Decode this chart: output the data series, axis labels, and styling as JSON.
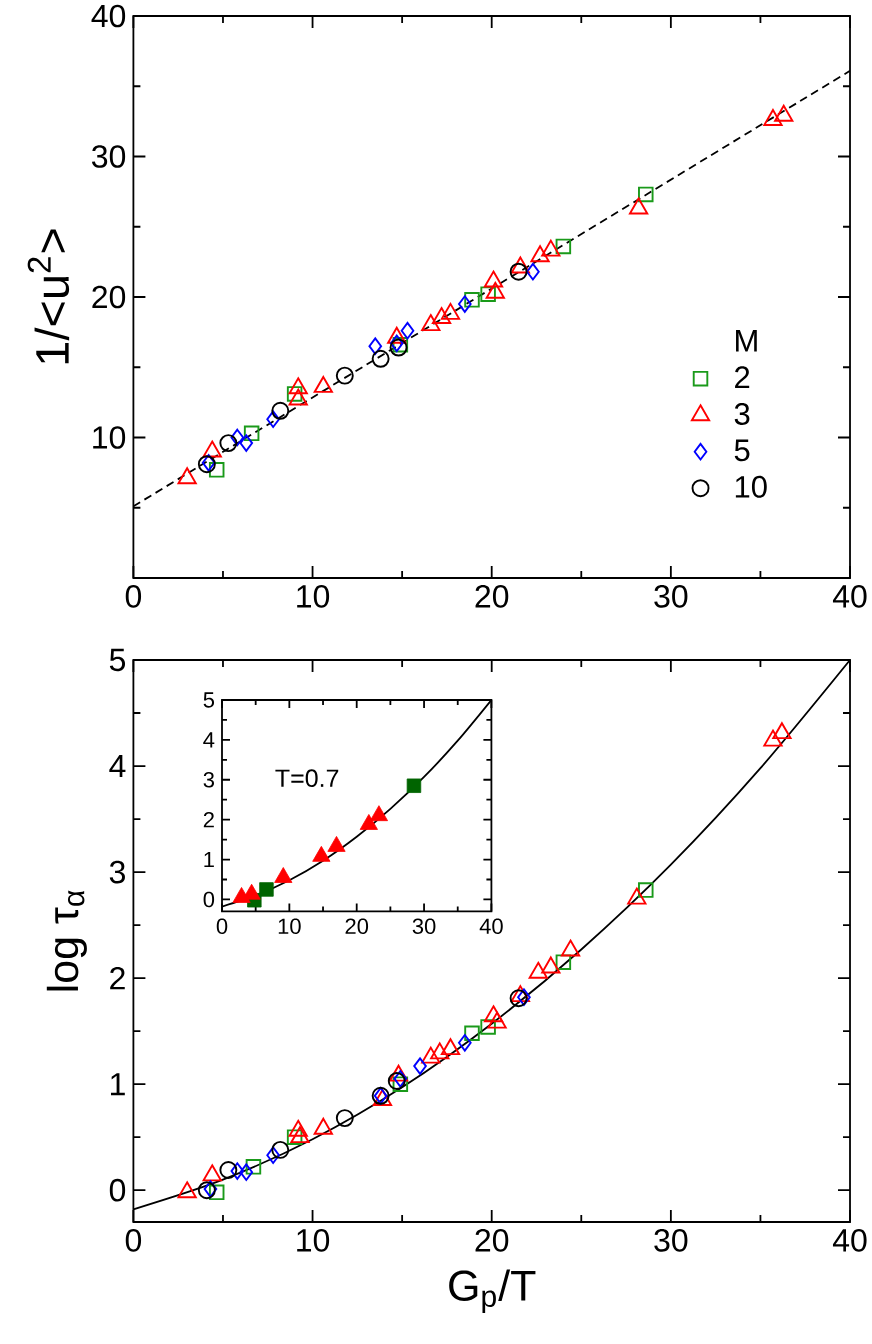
{
  "chart_data": [
    {
      "type": "scatter",
      "ylabel": "1/<u$^{2}$>",
      "legend_title": "M",
      "legend": "bottom right",
      "xlim": [
        0,
        40
      ],
      "ylim": [
        0,
        40
      ],
      "xticks": [
        0,
        {
          "value": 5,
          "label": null
        },
        10,
        {
          "value": 15,
          "label": null
        },
        20,
        {
          "value": 25,
          "label": null
        },
        30,
        {
          "value": 35,
          "label": null
        },
        40
      ],
      "yticks": [
        {
          "value": 5,
          "label": null
        },
        10,
        {
          "value": 15,
          "label": null
        },
        20,
        {
          "value": 25,
          "label": null
        },
        30,
        {
          "value": 35,
          "label": null
        },
        40
      ],
      "series": [
        {
          "type": "line",
          "color": "#000000",
          "line_style": "dashed",
          "x": [
            0,
            40
          ],
          "values": [
            5.1,
            36.1
          ]
        },
        {
          "name": "2",
          "color": "#1a9a1a",
          "marker": "square",
          "x": [
            4.65,
            6.6,
            9.0,
            14.9,
            18.9,
            19.8,
            24.0,
            28.6
          ],
          "values": [
            7.7,
            10.3,
            13.1,
            16.6,
            19.8,
            20.2,
            23.6,
            27.3
          ]
        },
        {
          "name": "3",
          "color": "#ff0000",
          "marker": "triangle",
          "x": [
            3.0,
            4.4,
            9.2,
            9.2,
            10.6,
            14.7,
            16.6,
            17.2,
            17.7,
            20.1,
            20.2,
            21.6,
            22.7,
            23.3,
            28.2,
            35.7,
            36.3
          ],
          "values": [
            7.1,
            9.0,
            13.5,
            12.7,
            13.6,
            17.1,
            18.0,
            18.5,
            18.8,
            21.1,
            20.3,
            22.1,
            22.9,
            23.3,
            26.3,
            32.6,
            32.9
          ]
        },
        {
          "name": "5",
          "color": "#0000ff",
          "marker": "diamond",
          "x": [
            4.2,
            5.8,
            6.3,
            7.8,
            13.5,
            14.7,
            15.3,
            18.5,
            22.3
          ],
          "values": [
            8.2,
            10.0,
            9.6,
            11.3,
            16.5,
            16.7,
            17.6,
            19.5,
            21.8
          ]
        },
        {
          "name": "10",
          "color": "#000000",
          "marker": "circle",
          "x": [
            4.1,
            5.3,
            8.2,
            11.8,
            13.8,
            14.8,
            21.5
          ],
          "values": [
            8.1,
            9.6,
            11.9,
            14.4,
            15.6,
            16.4,
            21.8
          ]
        }
      ]
    },
    {
      "type": "scatter",
      "xlabel": "G$_{p}$/T",
      "ylabel": "log τ$_{α}$",
      "xlim": [
        0,
        40
      ],
      "ylim": [
        -0.3,
        5
      ],
      "xticks": [
        0,
        {
          "value": 5,
          "label": null
        },
        10,
        {
          "value": 15,
          "label": null
        },
        20,
        {
          "value": 25,
          "label": null
        },
        30,
        {
          "value": 35,
          "label": null
        },
        40
      ],
      "yticks": [
        0,
        {
          "value": 0.5,
          "label": null
        },
        1,
        {
          "value": 1.5,
          "label": null
        },
        2,
        {
          "value": 2.5,
          "label": null
        },
        3,
        {
          "value": 3.5,
          "label": null
        },
        4,
        {
          "value": 4.5,
          "label": null
        },
        5
      ],
      "series": [
        {
          "type": "line",
          "color": "#000000",
          "line_style": "solid",
          "x": [
            0,
            5,
            10,
            15,
            20,
            25,
            30,
            35,
            40
          ],
          "values": [
            -0.18,
            0.1,
            0.48,
            0.97,
            1.57,
            2.27,
            3.07,
            3.98,
            5.0
          ]
        },
        {
          "color": "#1a9a1a",
          "marker": "square",
          "x": [
            4.65,
            6.7,
            9.0,
            14.9,
            18.9,
            19.8,
            24.0,
            28.6
          ],
          "values": [
            -0.02,
            0.22,
            0.5,
            1.0,
            1.48,
            1.54,
            2.15,
            2.83
          ]
        },
        {
          "color": "#ff0000",
          "marker": "triangle",
          "x": [
            3.0,
            4.4,
            9.2,
            9.3,
            10.6,
            13.9,
            14.8,
            16.6,
            17.1,
            17.7,
            20.1,
            20.3,
            21.6,
            22.6,
            23.3,
            24.4,
            28.1,
            35.7,
            36.2
          ],
          "values": [
            -0.02,
            0.14,
            0.56,
            0.5,
            0.58,
            0.85,
            1.08,
            1.25,
            1.29,
            1.33,
            1.64,
            1.58,
            1.83,
            2.05,
            2.1,
            2.26,
            2.75,
            4.24,
            4.31
          ]
        },
        {
          "color": "#0000ff",
          "marker": "diamond",
          "x": [
            4.3,
            5.8,
            6.3,
            7.8,
            13.8,
            14.9,
            16.0,
            18.5,
            21.8
          ],
          "values": [
            0.01,
            0.18,
            0.17,
            0.33,
            0.89,
            1.05,
            1.17,
            1.39,
            1.82
          ]
        },
        {
          "color": "#000000",
          "marker": "circle",
          "x": [
            4.1,
            5.3,
            8.2,
            11.8,
            13.8,
            14.7,
            21.5
          ],
          "values": [
            0.0,
            0.19,
            0.38,
            0.68,
            0.89,
            1.03,
            1.81
          ]
        }
      ]
    },
    {
      "type": "scatter",
      "annotations": [
        "T=0.7"
      ],
      "xlim": [
        0,
        40
      ],
      "ylim": [
        -0.3,
        5
      ],
      "xticks": [
        0,
        {
          "value": 5,
          "label": null
        },
        10,
        {
          "value": 15,
          "label": null
        },
        20,
        {
          "value": 25,
          "label": null
        },
        30,
        {
          "value": 35,
          "label": null
        },
        40
      ],
      "yticks": [
        0,
        {
          "value": 0.5,
          "label": null
        },
        1,
        {
          "value": 1.5,
          "label": null
        },
        2,
        {
          "value": 2.5,
          "label": null
        },
        3,
        {
          "value": 3.5,
          "label": null
        },
        4,
        {
          "value": 4.5,
          "label": null
        },
        5
      ],
      "series": [
        {
          "type": "line",
          "color": "#000000",
          "line_style": "solid",
          "x": [
            0,
            5,
            10,
            15,
            20,
            25,
            30,
            35,
            40
          ],
          "values": [
            -0.18,
            0.1,
            0.48,
            0.97,
            1.57,
            2.27,
            3.07,
            3.98,
            5.0
          ]
        },
        {
          "color": "#006400",
          "marker": "square",
          "x": [
            4.8,
            6.6,
            28.5
          ],
          "values": [
            -0.02,
            0.25,
            2.85
          ]
        },
        {
          "color": "#ff0000",
          "marker": "triangle",
          "x": [
            2.9,
            4.4,
            9.1,
            14.75,
            17.0,
            21.8,
            23.3
          ],
          "values": [
            0.05,
            0.13,
            0.55,
            1.08,
            1.33,
            1.88,
            2.1
          ]
        }
      ]
    }
  ]
}
